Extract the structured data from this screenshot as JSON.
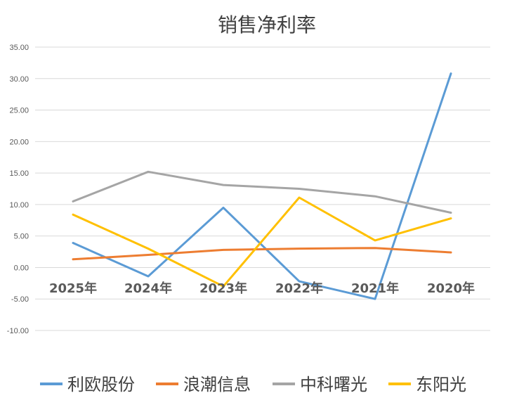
{
  "chart_data": {
    "type": "line",
    "title": "销售净利率",
    "xlabel": "",
    "ylabel": "",
    "categories": [
      "2025年",
      "2024年",
      "2023年",
      "2022年",
      "2021年",
      "2020年"
    ],
    "y_ticks": [
      "-10.00",
      "-5.00",
      "0.00",
      "5.00",
      "10.00",
      "15.00",
      "20.00",
      "25.00",
      "30.00",
      "35.00"
    ],
    "ylim": [
      -10,
      35
    ],
    "grid": true,
    "legend_position": "bottom",
    "series": [
      {
        "name": "利欧股份",
        "color": "#5b9bd5",
        "values": [
          3.9,
          -1.4,
          9.5,
          -2.2,
          -5.0,
          30.8
        ]
      },
      {
        "name": "浪潮信息",
        "color": "#ed7d31",
        "values": [
          1.3,
          2.0,
          2.8,
          3.0,
          3.1,
          2.4
        ]
      },
      {
        "name": "中科曙光",
        "color": "#a5a5a5",
        "values": [
          10.5,
          15.2,
          13.1,
          12.5,
          11.3,
          8.7
        ]
      },
      {
        "name": "东阳光",
        "color": "#ffc000",
        "values": [
          8.4,
          3.0,
          -3.0,
          11.1,
          4.3,
          7.8
        ]
      }
    ]
  }
}
